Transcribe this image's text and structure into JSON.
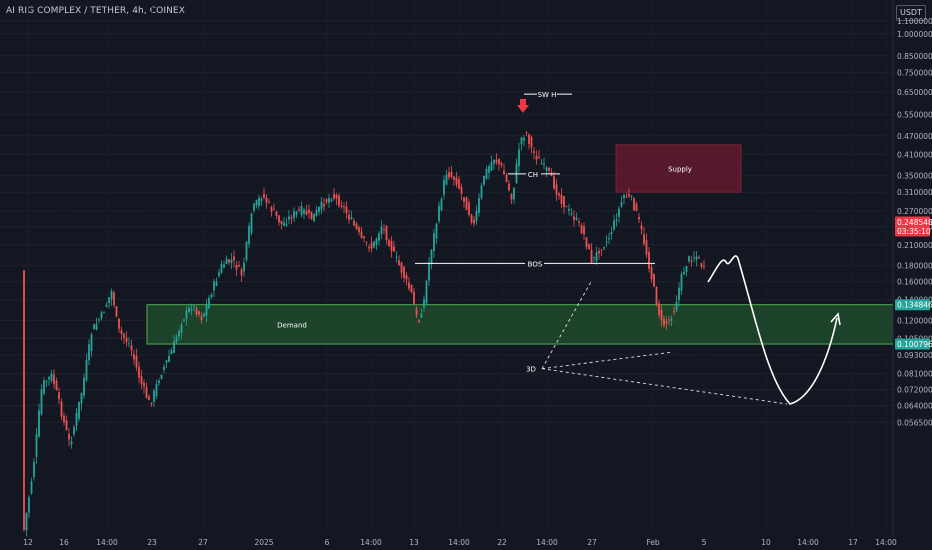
{
  "header": {
    "title": "AI RIG COMPLEX / TETHER, 4h, COINEX",
    "unit": "USDT"
  },
  "chart_data": {
    "type": "candlestick",
    "title": "AI RIG COMPLEX / TETHER, 4h, COINEX",
    "y_scale": "log",
    "ylim": [
      0.053,
      1.3
    ],
    "ytick_labels": [
      "1.100000",
      "1.000000",
      "0.850000",
      "0.750000",
      "0.650000",
      "0.550000",
      "0.470000",
      "0.410000",
      "0.350000",
      "0.310000",
      "0.270000",
      "0.240000",
      "0.210000",
      "0.180000",
      "0.160000",
      "0.140000",
      "0.120000",
      "0.105000",
      "0.093000",
      "0.081000",
      "0.072000",
      "0.064000",
      "0.056500"
    ],
    "ytick_values": [
      1.1,
      1.0,
      0.85,
      0.75,
      0.65,
      0.55,
      0.47,
      0.41,
      0.35,
      0.31,
      0.27,
      0.24,
      0.21,
      0.18,
      0.16,
      0.14,
      0.12,
      0.105,
      0.093,
      0.081,
      0.072,
      0.064,
      0.0565
    ],
    "xtick_labels": [
      "12",
      "16",
      "14:00",
      "23",
      "27",
      "2025",
      "6",
      "14:00",
      "13",
      "14:00",
      "22",
      "14:00",
      "27",
      "Feb",
      "5",
      "10",
      "14:00",
      "17",
      "14:00"
    ],
    "price_labels": [
      {
        "value": 0.248548,
        "text": "0.248548",
        "sub": "03:35:10",
        "color": "#f23645"
      },
      {
        "value": 0.134846,
        "text": "0.134846",
        "color": "#26a69a"
      },
      {
        "value": 0.100796,
        "text": "0.100796",
        "color": "#26a69a"
      }
    ],
    "zones": [
      {
        "label": "Supply",
        "top": 0.44,
        "bottom": 0.31,
        "color": "#5d1a2c"
      },
      {
        "label": "Demand",
        "top": 0.134846,
        "bottom": 0.100796,
        "color": "#1f4a2c"
      }
    ],
    "annotations": [
      {
        "text": "SW H",
        "value": 0.64
      },
      {
        "text": "CH",
        "value": 0.355
      },
      {
        "text": "BOS",
        "value": 0.183
      },
      {
        "text": "3D",
        "value": 0.084
      }
    ],
    "candle_colors": {
      "up": "#26a69a",
      "down": "#ef5350"
    }
  }
}
